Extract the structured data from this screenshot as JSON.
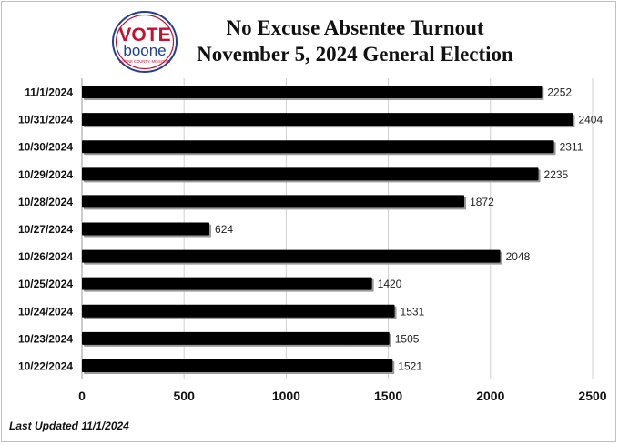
{
  "logo": {
    "word_top": "VOTE",
    "word_bottom": "boone",
    "tagline": "BOONE COUNTY, MISSOURI",
    "colors": {
      "red": "#c8102e",
      "blue": "#1f3f93"
    }
  },
  "footer": {
    "text": "Last Updated 11/1/2024"
  },
  "chart_data": {
    "type": "bar",
    "orientation": "horizontal",
    "title": "No Excuse Absentee Turnout",
    "subtitle": "November 5, 2024 General Election",
    "categories": [
      "11/1/2024",
      "10/31/2024",
      "10/30/2024",
      "10/29/2024",
      "10/28/2024",
      "10/27/2024",
      "10/26/2024",
      "10/25/2024",
      "10/24/2024",
      "10/23/2024",
      "10/22/2024"
    ],
    "values": [
      2252,
      2404,
      2311,
      2235,
      1872,
      624,
      2048,
      1420,
      1531,
      1505,
      1521
    ],
    "x_ticks": [
      0,
      500,
      1000,
      1500,
      2000,
      2500
    ],
    "xlim": [
      0,
      2500
    ],
    "grid": "vertical",
    "legend": "none",
    "bar_color": "#000000"
  }
}
